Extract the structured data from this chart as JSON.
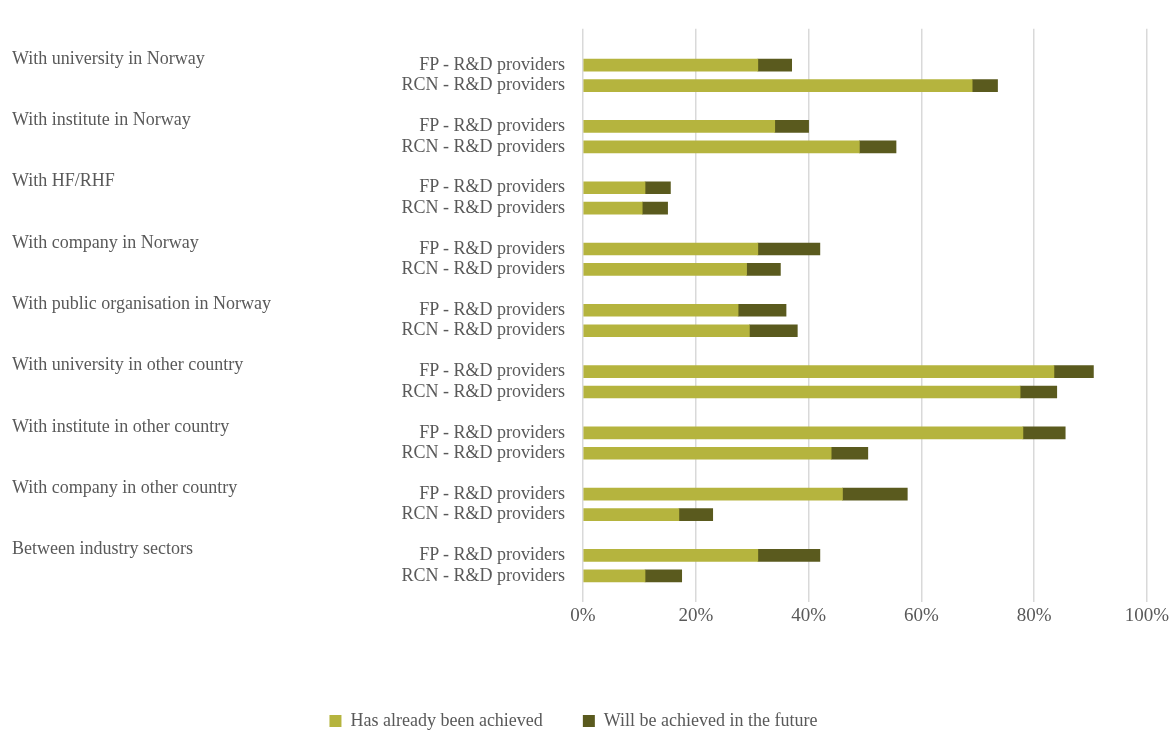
{
  "chart_data": {
    "type": "bar",
    "orientation": "horizontal",
    "stacked": true,
    "categories": [
      "FP - R&D providers",
      "RCN - R&D providers",
      "FP - R&D providers",
      "RCN - R&D providers",
      "FP - R&D providers",
      "RCN - R&D providers",
      "FP - R&D providers",
      "RCN - R&D providers",
      "FP - R&D providers",
      "RCN - R&D providers",
      "FP - R&D providers",
      "RCN - R&D providers",
      "FP - R&D providers",
      "RCN - R&D providers",
      "FP - R&D providers",
      "RCN - R&D providers",
      "FP - R&D providers",
      "RCN - R&D providers"
    ],
    "annotations": [
      "With university in Norway",
      "With institute in Norway",
      "With HF/RHF",
      "With company in Norway",
      "With public organisation in Norway",
      "With university in other country",
      "With institute in other country",
      "With company in other country",
      "Between industry sectors"
    ],
    "series": [
      {
        "name": "Has already been achieved",
        "color": "#b5b43e",
        "values": [
          31,
          69,
          34,
          49,
          11,
          10.5,
          31,
          29,
          27.5,
          29.5,
          83.5,
          77.5,
          78,
          44,
          46,
          17,
          31,
          11
        ]
      },
      {
        "name": "Will be achieved in the future",
        "color": "#5a5a1e",
        "values": [
          6,
          4.5,
          6,
          6.5,
          4.5,
          4.5,
          11,
          6,
          8.5,
          8.5,
          7,
          6.5,
          7.5,
          6.5,
          11.5,
          6,
          11,
          6.5
        ]
      }
    ],
    "xlim": [
      0,
      100
    ],
    "xticks": [
      {
        "value": 0,
        "label": "0%"
      },
      {
        "value": 20,
        "label": "20%"
      },
      {
        "value": 40,
        "label": "40%"
      },
      {
        "value": 60,
        "label": "60%"
      },
      {
        "value": 80,
        "label": "80%"
      },
      {
        "value": 100,
        "label": "100%"
      }
    ],
    "grid": "x",
    "legend": "bottom"
  }
}
